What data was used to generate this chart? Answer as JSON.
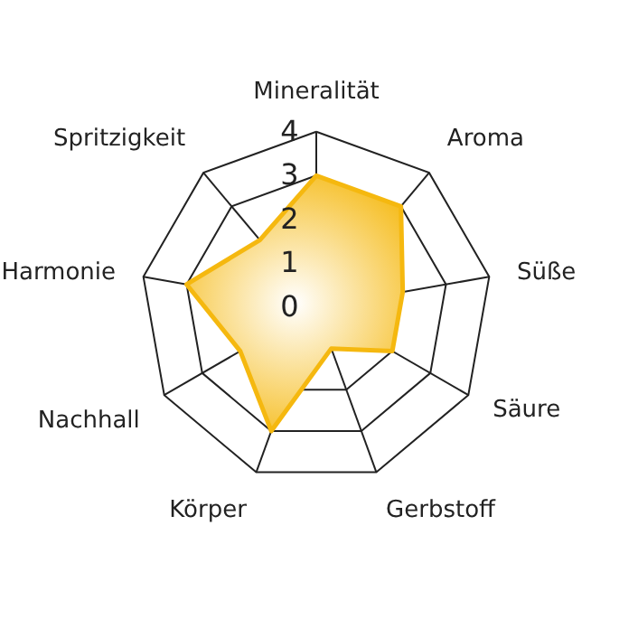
{
  "chart_data": {
    "type": "radar",
    "categories": [
      "Mineralität",
      "Aroma",
      "Süße",
      "Säure",
      "Gerbstoff",
      "Körper",
      "Nachhall",
      "Harmonie",
      "Spritzigkeit"
    ],
    "series": [
      {
        "color": "#f5b80f",
        "values": [
          3,
          3,
          2,
          2,
          1,
          3,
          2,
          3,
          2
        ]
      }
    ],
    "ylim": [
      0,
      4
    ],
    "yticks": [
      0,
      1,
      2,
      3,
      4
    ],
    "grid": true,
    "marker": "none"
  }
}
